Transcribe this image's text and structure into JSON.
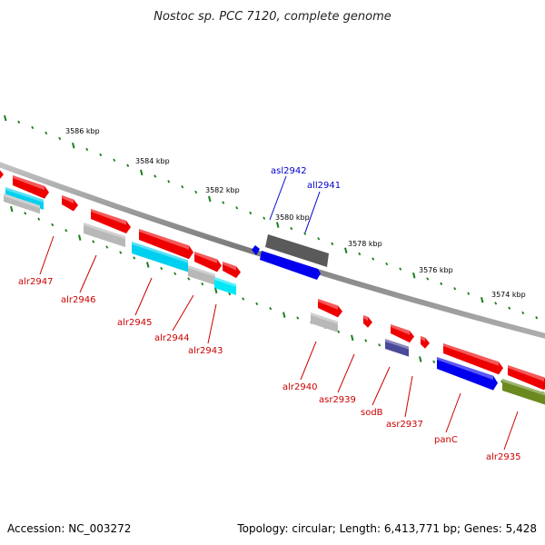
{
  "title": "Nostoc sp. PCC 7120, complete genome",
  "footer": {
    "accession": "Accession: NC_003272",
    "summary": "Topology: circular; Length: 6,413,771 bp; Genes: 5,428"
  },
  "colors": {
    "backbone": "#8a8a8a",
    "tick": "#1a7f1a",
    "label_reverse": "#cc0000",
    "label_forward": "#0000cc"
  },
  "ruler_labels": [
    "3586 kbp",
    "3584 kbp",
    "3582 kbp",
    "3580 kbp",
    "3578 kbp",
    "3576 kbp",
    "3574 kbp"
  ],
  "genes": [
    {
      "name": "asl2942",
      "strand": "forward",
      "color": "#0000ff"
    },
    {
      "name": "all2941",
      "strand": "forward",
      "color": "#0000ff"
    },
    {
      "name": "alr2947",
      "strand": "reverse",
      "color": "#cc0000"
    },
    {
      "name": "alr2946",
      "strand": "reverse",
      "color": "#cc0000"
    },
    {
      "name": "alr2945",
      "strand": "reverse",
      "color": "#cc0000"
    },
    {
      "name": "alr2944",
      "strand": "reverse",
      "color": "#cc0000"
    },
    {
      "name": "alr2943",
      "strand": "reverse",
      "color": "#cc0000"
    },
    {
      "name": "alr2940",
      "strand": "reverse",
      "color": "#cc0000"
    },
    {
      "name": "asr2939",
      "strand": "reverse",
      "color": "#cc0000"
    },
    {
      "name": "sodB",
      "strand": "reverse",
      "color": "#cc0000"
    },
    {
      "name": "asr2937",
      "strand": "reverse",
      "color": "#cc0000"
    },
    {
      "name": "panC",
      "strand": "reverse",
      "color": "#cc0000"
    },
    {
      "name": "alr2935",
      "strand": "reverse",
      "color": "#cc0000"
    }
  ]
}
